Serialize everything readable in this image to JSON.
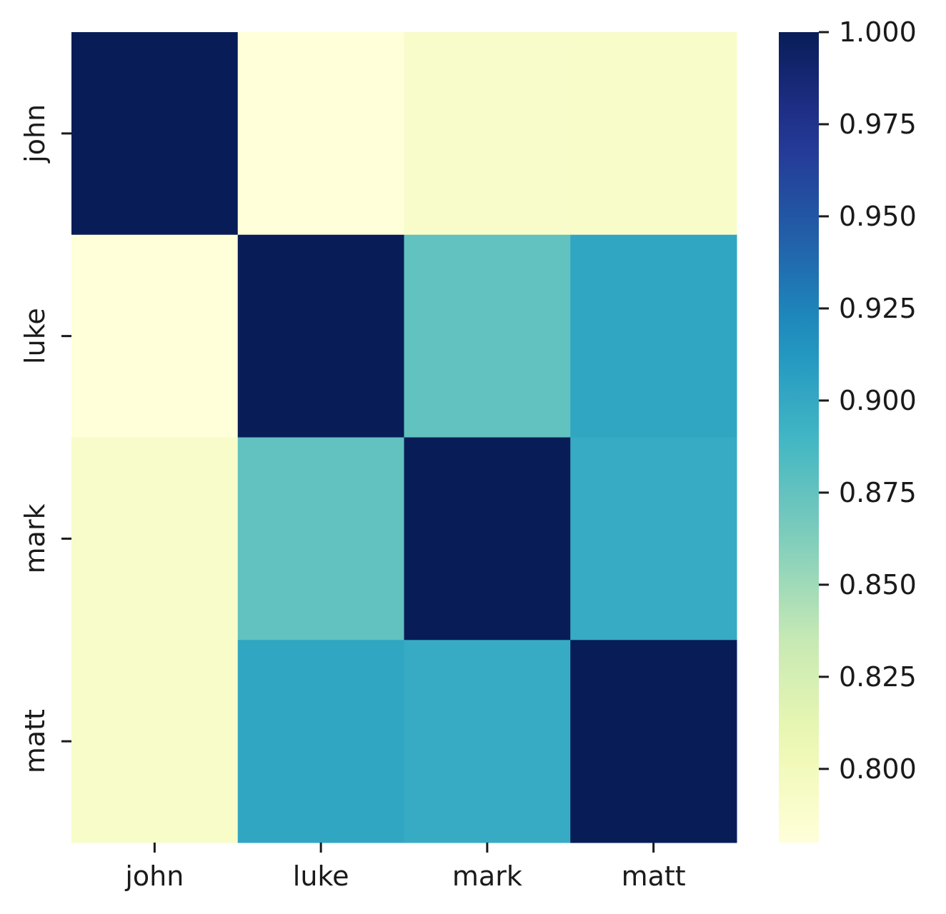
{
  "chart_data": {
    "type": "heatmap",
    "title": "",
    "xlabel": "",
    "ylabel": "",
    "x_categories": [
      "john",
      "luke",
      "mark",
      "matt"
    ],
    "y_categories": [
      "john",
      "luke",
      "mark",
      "matt"
    ],
    "values": [
      [
        1.0,
        0.78,
        0.79,
        0.791
      ],
      [
        0.78,
        1.0,
        0.876,
        0.902
      ],
      [
        0.79,
        0.876,
        1.0,
        0.898
      ],
      [
        0.791,
        0.902,
        0.898,
        1.0
      ]
    ],
    "colormap": "YlGnBu",
    "colorbar": {
      "min": 0.78,
      "max": 1.0,
      "ticks": [
        0.8,
        0.825,
        0.85,
        0.875,
        0.9,
        0.925,
        0.95,
        0.975,
        1.0
      ],
      "tick_labels": [
        "0.800",
        "0.825",
        "0.850",
        "0.875",
        "0.900",
        "0.925",
        "0.950",
        "0.975",
        "1.000"
      ],
      "position": "right"
    },
    "grid": false,
    "legend": "none"
  }
}
